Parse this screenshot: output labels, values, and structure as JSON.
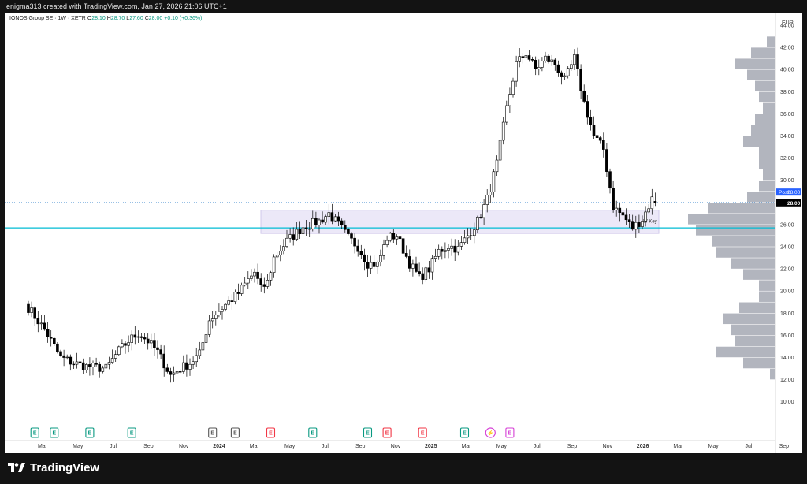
{
  "header": {
    "caption": "enigma313 created with TradingView.com, Jan 27, 2026 21:06 UTC+1"
  },
  "legend": {
    "symbol": "IONOS Group SE · 1W · XETR",
    "open_label": "O",
    "open": "28.10",
    "high_label": "H",
    "high": "28.70",
    "low_label": "L",
    "low": "27.60",
    "close_label": "C",
    "close": "28.00",
    "change": "+0.10 (+0.36%)"
  },
  "footer": {
    "brand": "TradingView"
  },
  "colors": {
    "up_body": "#ffffff",
    "down_body": "#000000",
    "wick": "#000000",
    "zone_fill": "#e9e4f7",
    "zone_border": "#c9bfe8",
    "key_line": "#00bcd4",
    "last_price_line": "#5b9bd5",
    "volume_profile": "#b2b5be",
    "earnings_green": "#089981",
    "earnings_red": "#f23645",
    "earnings_gray": "#555555",
    "earnings_purple": "#d63fd6"
  },
  "chart_data": {
    "type": "candlestick",
    "title": "IONOS Group SE · 1W · XETR",
    "currency": "EUR",
    "ylim": [
      9,
      45
    ],
    "y_ticks": [
      "10.00",
      "12.00",
      "14.00",
      "16.00",
      "18.00",
      "20.00",
      "22.00",
      "24.00",
      "26.00",
      "28.00",
      "30.00",
      "32.00",
      "34.00",
      "36.00",
      "38.00",
      "40.00",
      "42.00",
      "44.00"
    ],
    "x_tick_labels": [
      "Mar",
      "May",
      "Jul",
      "Sep",
      "Nov",
      "2024",
      "Mar",
      "May",
      "Jul",
      "Sep",
      "Nov",
      "2025",
      "Mar",
      "May",
      "Jul",
      "Sep",
      "Nov",
      "2026",
      "Mar",
      "May",
      "Jul",
      "Sep"
    ],
    "post_label": "Post",
    "post_price": "28.00",
    "last_price": "28.00",
    "zone": {
      "top": 27.3,
      "bottom": 25.2,
      "label": "W Key"
    },
    "key_level": 25.7,
    "anchors": [
      [
        0,
        18.5
      ],
      [
        5,
        16.5
      ],
      [
        10,
        14
      ],
      [
        14,
        13.5
      ],
      [
        18,
        13.2
      ],
      [
        24,
        13.0
      ],
      [
        28,
        14.6
      ],
      [
        31,
        15.5
      ],
      [
        34,
        16.2
      ],
      [
        37,
        15.5
      ],
      [
        40,
        14.5
      ],
      [
        44,
        12.4
      ],
      [
        47,
        13.0
      ],
      [
        50,
        13.5
      ],
      [
        53,
        14.3
      ],
      [
        56,
        17.4
      ],
      [
        60,
        18.5
      ],
      [
        65,
        19.8
      ],
      [
        68,
        21.0
      ],
      [
        70,
        21.7
      ],
      [
        72,
        20.2
      ],
      [
        74,
        20.8
      ],
      [
        76,
        23.0
      ],
      [
        80,
        24.5
      ],
      [
        85,
        25.8
      ],
      [
        90,
        26.3
      ],
      [
        93,
        27.0
      ],
      [
        96,
        26.0
      ],
      [
        99,
        24.8
      ],
      [
        102,
        24.0
      ],
      [
        105,
        22.5
      ],
      [
        108,
        22.4
      ],
      [
        111,
        24.8
      ],
      [
        114,
        25.0
      ],
      [
        118,
        22.5
      ],
      [
        121,
        21.2
      ],
      [
        124,
        22.0
      ],
      [
        127,
        23.6
      ],
      [
        130,
        24.1
      ],
      [
        133,
        23.8
      ],
      [
        136,
        25.0
      ],
      [
        139,
        26.3
      ],
      [
        142,
        28.3
      ],
      [
        145,
        31.5
      ],
      [
        148,
        36.5
      ],
      [
        151,
        40.5
      ],
      [
        154,
        41.5
      ],
      [
        157,
        40.0
      ],
      [
        160,
        41.0
      ],
      [
        163,
        40.5
      ],
      [
        166,
        39.0
      ],
      [
        169,
        41.0
      ],
      [
        172,
        37.0
      ],
      [
        175,
        34.0
      ],
      [
        178,
        32.8
      ],
      [
        181,
        27.6
      ],
      [
        184,
        26.8
      ],
      [
        187,
        25.7
      ],
      [
        190,
        26.5
      ],
      [
        193,
        28.3
      ],
      [
        194,
        28.0
      ]
    ],
    "volume_profile": [
      {
        "price": 12.5,
        "width": 6
      },
      {
        "price": 13.5,
        "width": 40
      },
      {
        "price": 14.5,
        "width": 75
      },
      {
        "price": 15.5,
        "width": 50
      },
      {
        "price": 16.5,
        "width": 55
      },
      {
        "price": 17.5,
        "width": 65
      },
      {
        "price": 18.5,
        "width": 45
      },
      {
        "price": 19.5,
        "width": 20
      },
      {
        "price": 20.5,
        "width": 20
      },
      {
        "price": 21.5,
        "width": 40
      },
      {
        "price": 22.5,
        "width": 55
      },
      {
        "price": 23.5,
        "width": 75
      },
      {
        "price": 24.5,
        "width": 80
      },
      {
        "price": 25.5,
        "width": 100
      },
      {
        "price": 26.5,
        "width": 110
      },
      {
        "price": 27.5,
        "width": 85
      },
      {
        "price": 28.5,
        "width": 35
      },
      {
        "price": 29.5,
        "width": 20
      },
      {
        "price": 30.5,
        "width": 15
      },
      {
        "price": 31.5,
        "width": 20
      },
      {
        "price": 32.5,
        "width": 20
      },
      {
        "price": 33.5,
        "width": 40
      },
      {
        "price": 34.5,
        "width": 30
      },
      {
        "price": 35.5,
        "width": 25
      },
      {
        "price": 36.5,
        "width": 15
      },
      {
        "price": 37.5,
        "width": 20
      },
      {
        "price": 38.5,
        "width": 25
      },
      {
        "price": 39.5,
        "width": 35
      },
      {
        "price": 40.5,
        "width": 50
      },
      {
        "price": 41.5,
        "width": 30
      },
      {
        "price": 42.5,
        "width": 10
      }
    ],
    "events": [
      {
        "label": "E",
        "week": 2,
        "kind": "green"
      },
      {
        "label": "E",
        "week": 8,
        "kind": "green"
      },
      {
        "label": "E",
        "week": 19,
        "kind": "green"
      },
      {
        "label": "E",
        "week": 32,
        "kind": "green"
      },
      {
        "label": "E",
        "week": 57,
        "kind": "gray"
      },
      {
        "label": "E",
        "week": 64,
        "kind": "gray"
      },
      {
        "label": "E",
        "week": 75,
        "kind": "red"
      },
      {
        "label": "E",
        "week": 88,
        "kind": "green"
      },
      {
        "label": "E",
        "week": 105,
        "kind": "green"
      },
      {
        "label": "E",
        "week": 111,
        "kind": "red"
      },
      {
        "label": "E",
        "week": 122,
        "kind": "red"
      },
      {
        "label": "E",
        "week": 135,
        "kind": "green"
      },
      {
        "label": "⚡",
        "week": 143,
        "kind": "purple"
      },
      {
        "label": "E",
        "week": 149,
        "kind": "purple"
      }
    ]
  }
}
